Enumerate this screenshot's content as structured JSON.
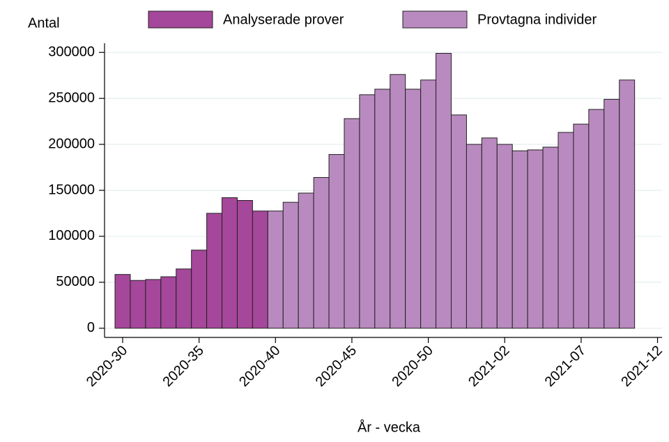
{
  "chart_data": {
    "type": "bar",
    "stacked": false,
    "y_label": "Antal",
    "x_label": "År - vecka",
    "categories": [
      "2020-30",
      null,
      null,
      null,
      null,
      "2020-35",
      null,
      null,
      null,
      null,
      "2020-40",
      null,
      null,
      null,
      null,
      "2020-45",
      null,
      null,
      null,
      null,
      "2020-50",
      null,
      null,
      null,
      null,
      "2021-02",
      null,
      null,
      null,
      null,
      "2021-07",
      null,
      null,
      null,
      null,
      "2021-12"
    ],
    "series": [
      {
        "name": "Analyserade prover",
        "color": "#a5479a",
        "values": [
          58500,
          52000,
          53000,
          56000,
          64500,
          85000,
          125000,
          142000,
          139000,
          127500,
          null,
          null,
          null,
          null,
          null,
          null,
          null,
          null,
          null,
          null,
          null,
          null,
          null,
          null,
          null,
          null,
          null,
          null,
          null,
          null,
          null,
          null,
          null,
          null,
          null,
          null
        ]
      },
      {
        "name": "Provtagna individer",
        "color": "#b98abf",
        "values": [
          null,
          null,
          null,
          null,
          null,
          null,
          null,
          null,
          null,
          null,
          127500,
          137000,
          147000,
          164000,
          189000,
          228000,
          254000,
          260000,
          276000,
          260000,
          270000,
          299000,
          232000,
          200000,
          207000,
          200000,
          193000,
          194000,
          197000,
          213000,
          222000,
          238000,
          249000,
          270000,
          null,
          null
        ]
      }
    ],
    "ylim": [
      -10000,
      310000
    ],
    "yticks": [
      0,
      50000,
      100000,
      150000,
      200000,
      250000,
      300000
    ],
    "grid": true,
    "legend": "top"
  }
}
